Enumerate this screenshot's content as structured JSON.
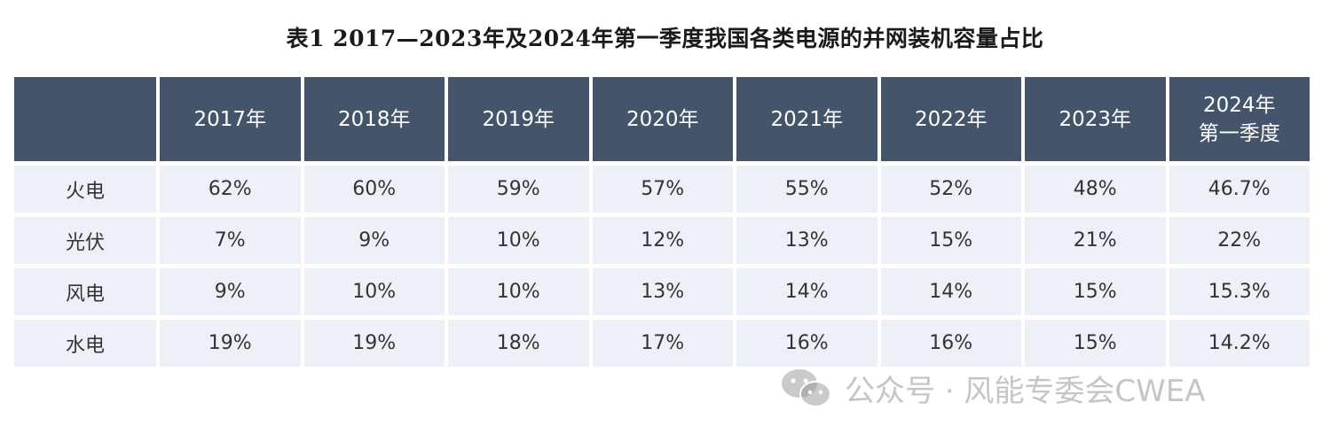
{
  "title": "表1 2017—2023年及2024年第一季度我国各类电源的并网装机容量占比",
  "table": {
    "header": [
      "",
      "2017年",
      "2018年",
      "2019年",
      "2020年",
      "2021年",
      "2022年",
      "2023年"
    ],
    "last_header_line1": "2024年",
    "last_header_line2": "第一季度",
    "rows": [
      {
        "label": "火电",
        "values": [
          "62%",
          "60%",
          "59%",
          "57%",
          "55%",
          "52%",
          "48%",
          "46.7%"
        ]
      },
      {
        "label": "光伏",
        "values": [
          "7%",
          "9%",
          "10%",
          "12%",
          "13%",
          "15%",
          "21%",
          "22%"
        ]
      },
      {
        "label": "风电",
        "values": [
          "9%",
          "10%",
          "10%",
          "13%",
          "14%",
          "14%",
          "15%",
          "15.3%"
        ]
      },
      {
        "label": "水电",
        "values": [
          "19%",
          "19%",
          "18%",
          "17%",
          "16%",
          "16%",
          "15%",
          "14.2%"
        ]
      }
    ]
  },
  "watermark": {
    "text": "公众号 · 风能专委会CWEA",
    "icon": "wechat-icon"
  },
  "colors": {
    "header_bg": "#44546a",
    "cell_bg": "#edf0f7"
  }
}
